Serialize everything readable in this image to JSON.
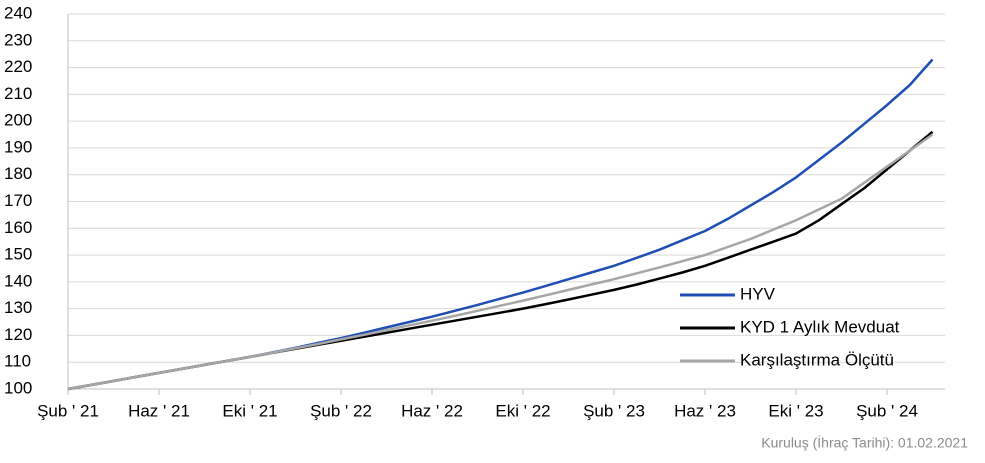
{
  "chart_data": {
    "type": "line",
    "categories": [
      "Şub ' 21",
      null,
      null,
      null,
      "Haz ' 21",
      null,
      null,
      null,
      "Eki ' 21",
      null,
      null,
      null,
      "Şub ' 22",
      null,
      null,
      null,
      "Haz ' 22",
      null,
      null,
      null,
      "Eki ' 22",
      null,
      null,
      null,
      "Şub ' 23",
      null,
      null,
      null,
      "Haz ' 23",
      null,
      null,
      null,
      "Eki ' 23",
      null,
      null,
      null,
      "Şub ' 24",
      null,
      null
    ],
    "series": [
      {
        "name": "HYV",
        "color": "#1f4fb4",
        "values": [
          100,
          101.5,
          103,
          104.5,
          106,
          107.5,
          109,
          110.5,
          112,
          113.7,
          115.4,
          117.2,
          119,
          121,
          123,
          125,
          127,
          129.2,
          131.4,
          133.7,
          136,
          138.5,
          141,
          143.5,
          146,
          149,
          152,
          155.5,
          159,
          163.5,
          168.5,
          173.5,
          179,
          185.5,
          192,
          199,
          206,
          213.5,
          223
        ]
      },
      {
        "name": "KYD 1 Aylık Mevduat",
        "color": "#000000",
        "values": [
          100,
          101.5,
          103,
          104.5,
          106,
          107.5,
          109,
          110.5,
          112,
          113.5,
          115,
          116.5,
          118,
          119.5,
          121,
          122.5,
          124,
          125.5,
          127,
          128.5,
          130,
          131.7,
          133.4,
          135.2,
          137,
          139,
          141.2,
          143.5,
          146,
          149,
          152,
          155,
          158,
          163,
          169,
          175,
          182,
          189,
          196
        ]
      },
      {
        "name": "Karşılaştırma Ölçütü",
        "color": "#a6a6a6",
        "values": [
          100,
          101.5,
          103,
          104.5,
          106,
          107.5,
          109,
          110.5,
          112,
          113.6,
          115.2,
          116.8,
          118.5,
          120.2,
          122,
          123.8,
          125.5,
          127.3,
          129.2,
          131.1,
          133,
          135,
          137,
          139,
          141,
          143.2,
          145.4,
          147.7,
          150,
          153,
          156,
          159.5,
          163,
          167,
          171,
          177,
          183,
          189,
          195
        ]
      }
    ],
    "ylim": [
      100,
      240
    ],
    "yticks": [
      100,
      110,
      120,
      130,
      140,
      150,
      160,
      170,
      180,
      190,
      200,
      210,
      220,
      230,
      240
    ],
    "grid": true,
    "legend": "lower right",
    "note": "Kuruluş (İhraç Tarihi): 01.02.2021"
  }
}
